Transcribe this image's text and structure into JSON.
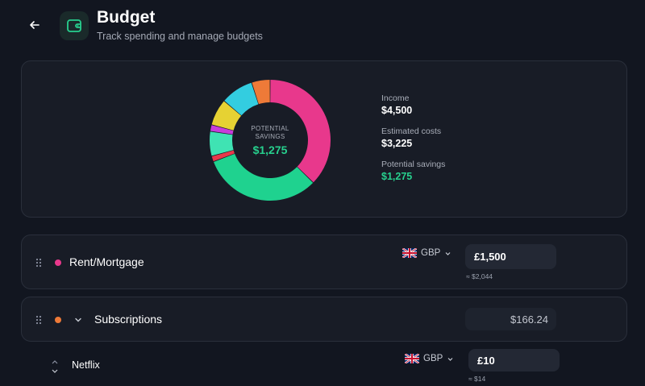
{
  "header": {
    "title": "Budget",
    "subtitle": "Track spending and manage budgets"
  },
  "summary": {
    "center_label": "POTENTIAL SAVINGS",
    "center_value": "$1,275",
    "stats": [
      {
        "label": "Income",
        "value": "$4,500"
      },
      {
        "label": "Estimated costs",
        "value": "$3,225"
      },
      {
        "label": "Potential savings",
        "value": "$1,275"
      }
    ],
    "segments": [
      {
        "color": "#e8388c",
        "value": 34
      },
      {
        "color": "#1fd28f",
        "value": 29
      },
      {
        "color": "#e8384a",
        "value": 1.4
      },
      {
        "color": "#3fe3b3",
        "value": 6
      },
      {
        "color": "#c73ddb",
        "value": 1.6
      },
      {
        "color": "#e6d233",
        "value": 6.5
      },
      {
        "color": "#33cde0",
        "value": 8
      },
      {
        "color": "#ee7a38",
        "value": 4.5
      }
    ]
  },
  "categories": [
    {
      "label": "Rent/Mortgage",
      "dot_color": "#e8388c",
      "currency": "GBP",
      "amount": "£1,500",
      "approx": "≈ $2,044"
    },
    {
      "label": "Subscriptions",
      "dot_color": "#ee7a38",
      "total": "$166.24",
      "items": [
        {
          "label": "Netflix",
          "currency": "GBP",
          "amount": "£10",
          "approx": "≈ $14"
        }
      ]
    }
  ],
  "colors": {
    "background": "#121620",
    "card": "#181c26",
    "accent_green": "#27d08e"
  }
}
